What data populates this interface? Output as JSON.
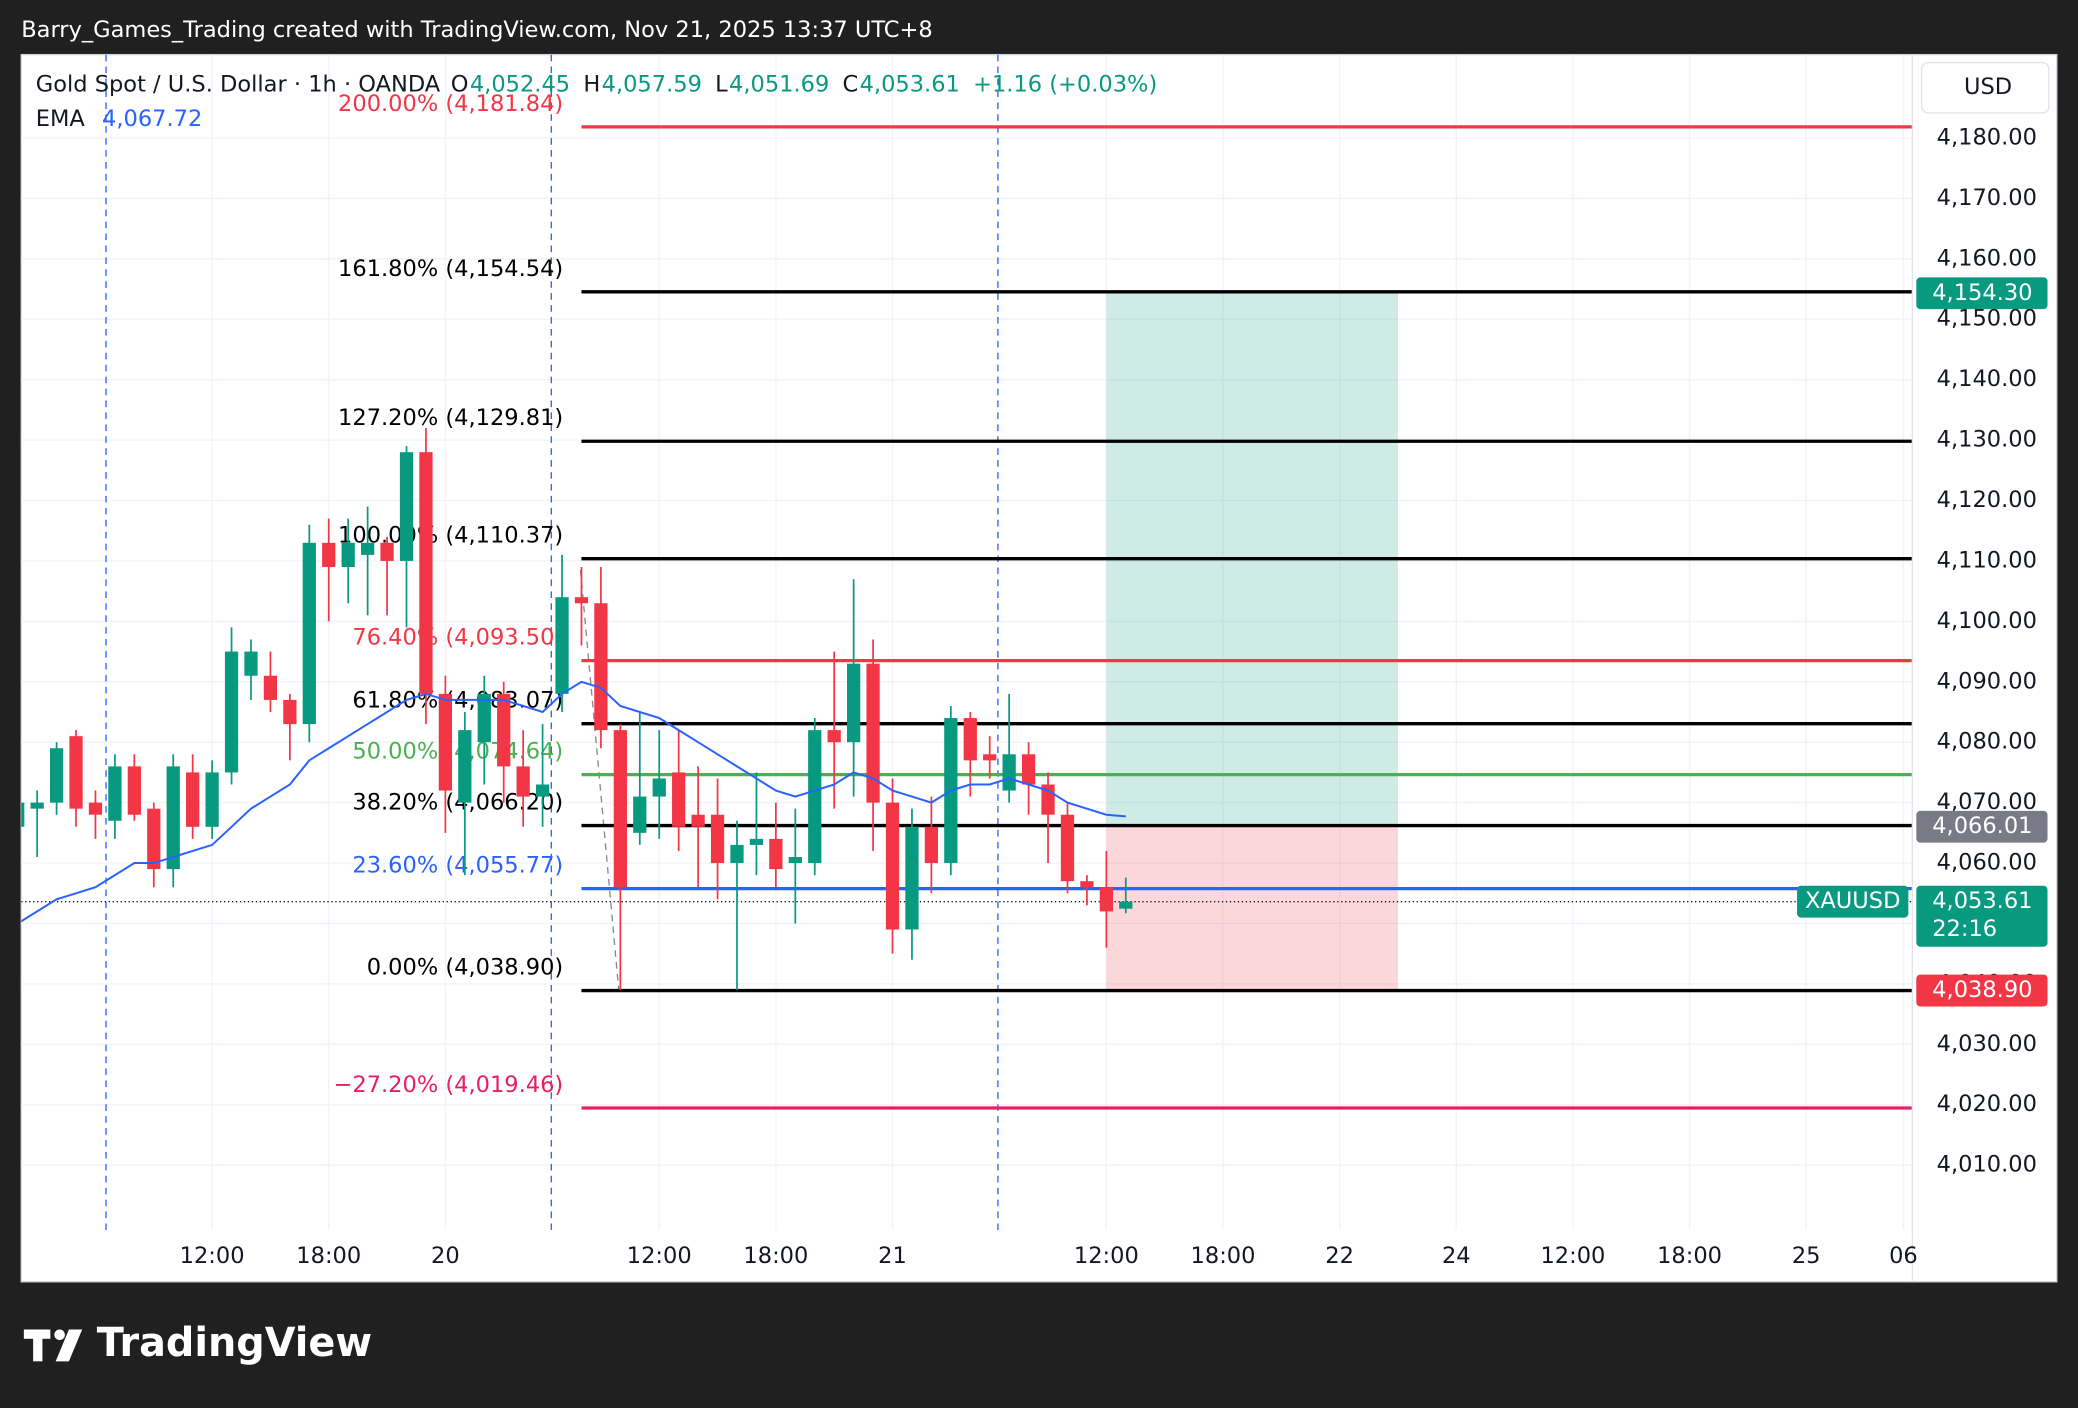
{
  "header": {
    "text": "Barry_Games_Trading created with TradingView.com, Nov 21, 2025 13:37 UTC+8"
  },
  "footer": {
    "brand": "TradingView"
  },
  "chart_data": {
    "type": "candlestick",
    "legend": {
      "symbol": "Gold Spot / U.S. Dollar · 1h · OANDA",
      "ohlc": [
        {
          "key": "O",
          "value": "4,052.45"
        },
        {
          "key": "H",
          "value": "4,057.59"
        },
        {
          "key": "L",
          "value": "4,051.69"
        },
        {
          "key": "C",
          "value": "4,053.61"
        }
      ],
      "change": "+1.16 (+0.03%)",
      "ema_label": "EMA",
      "ema_value": "4,067.72"
    },
    "currency": "USD",
    "up_color": "#089981",
    "down_color": "#f23645",
    "open": [
      4066,
      4069,
      4070,
      4081,
      4070,
      4067,
      4076,
      4069,
      4059,
      4075,
      4066,
      4075,
      4091,
      4091,
      4087,
      4083,
      4113,
      4109,
      4111,
      4113,
      4110,
      4128,
      4088,
      4070,
      4080,
      4088,
      4076,
      4071,
      4088,
      4104,
      4103,
      4082,
      4065,
      4071,
      4075,
      4068,
      4068,
      4060,
      4063,
      4064,
      4060,
      4060,
      4082,
      4080,
      4093,
      4070,
      4049,
      4066,
      4060,
      4084,
      4078,
      4072,
      4078,
      4073,
      4068,
      4057,
      4056,
      4052.45
    ],
    "high": [
      4071,
      4072,
      4080,
      4082,
      4072,
      4078,
      4078,
      4070,
      4078,
      4078,
      4077,
      4099,
      4097,
      4095,
      4088,
      4116,
      4117,
      4117,
      4119,
      4114,
      4129,
      4132,
      4091,
      4085,
      4091,
      4090,
      4082,
      4083,
      4111,
      4109,
      4109,
      4083,
      4085,
      4082,
      4082,
      4076,
      4074,
      4067,
      4075,
      4070,
      4069,
      4084,
      4095,
      4107,
      4097,
      4074,
      4069,
      4071,
      4086,
      4085,
      4081,
      4088,
      4080,
      4075,
      4070,
      4058,
      4062,
      4057.59
    ],
    "low": [
      4064,
      4061,
      4068,
      4066,
      4064,
      4064,
      4067,
      4056,
      4056,
      4064,
      4064,
      4073,
      4087,
      4085,
      4077,
      4080,
      4100,
      4103,
      4101,
      4101,
      4099,
      4083,
      4065,
      4058,
      4073,
      4070,
      4066,
      4066,
      4085,
      4096,
      4079,
      4039,
      4063,
      4064,
      4062,
      4056,
      4054,
      4039,
      4058,
      4056,
      4050,
      4058,
      4069,
      4071,
      4062,
      4045,
      4044,
      4055,
      4058,
      4071,
      4074,
      4070,
      4068,
      4060,
      4055,
      4053,
      4046,
      4051.69
    ],
    "close": [
      4070,
      4070,
      4079,
      4069,
      4068,
      4076,
      4068,
      4059,
      4076,
      4066,
      4075,
      4095,
      4095,
      4087,
      4083,
      4113,
      4109,
      4113,
      4113,
      4110,
      4128,
      4088,
      4072,
      4082,
      4088,
      4076,
      4071,
      4073,
      4104,
      4103,
      4082,
      4056,
      4071,
      4074,
      4066,
      4066,
      4060,
      4063,
      4064,
      4059,
      4061,
      4082,
      4080,
      4093,
      4070,
      4049,
      4066,
      4060,
      4084,
      4077,
      4077,
      4078,
      4073,
      4068,
      4057,
      4056,
      4052,
      4053.61
    ],
    "ema": {
      "color": "#2962ff",
      "values": [
        4050,
        4052,
        4054,
        4055,
        4056,
        4058,
        4060,
        4060,
        4061,
        4062,
        4063,
        4066,
        4069,
        4071,
        4073,
        4077,
        4079,
        4081,
        4083,
        4085,
        4087,
        4088,
        4087,
        4087,
        4087,
        4087,
        4086,
        4085,
        4088,
        4090,
        4089,
        4086,
        4085,
        4084,
        4082,
        4080,
        4078,
        4076,
        4074,
        4072,
        4071,
        4072,
        4073,
        4075,
        4074,
        4072,
        4071,
        4070,
        4072,
        4073,
        4073,
        4074,
        4073,
        4072,
        4070,
        4069,
        4068,
        4067.72
      ]
    },
    "xlim": [
      0.18,
      97.46
    ],
    "xticks": [
      {
        "value": 10,
        "label": "12:00"
      },
      {
        "value": 16,
        "label": "18:00"
      },
      {
        "value": 22,
        "label": "20"
      },
      {
        "value": 33,
        "label": "12:00"
      },
      {
        "value": 39,
        "label": "18:00"
      },
      {
        "value": 45,
        "label": "21"
      },
      {
        "value": 56,
        "label": "12:00"
      },
      {
        "value": 62,
        "label": "18:00"
      },
      {
        "value": 68,
        "label": "22"
      },
      {
        "value": 74,
        "label": "24"
      },
      {
        "value": 80,
        "label": "12:00"
      },
      {
        "value": 86,
        "label": "18:00"
      },
      {
        "value": 92,
        "label": "25"
      },
      {
        "value": 97,
        "label": "06"
      }
    ],
    "ylim": [
      3999.25,
      4193.8
    ],
    "yticks": [
      {
        "value": 4010,
        "label": "4,010.00"
      },
      {
        "value": 4020,
        "label": "4,020.00"
      },
      {
        "value": 4030,
        "label": "4,030.00"
      },
      {
        "value": 4040,
        "label": "4,040.00"
      },
      {
        "value": 4050,
        "label": "4,050.00"
      },
      {
        "value": 4060,
        "label": "4,060.00"
      },
      {
        "value": 4070,
        "label": "4,070.00"
      },
      {
        "value": 4080,
        "label": "4,080.00"
      },
      {
        "value": 4090,
        "label": "4,090.00"
      },
      {
        "value": 4100,
        "label": "4,100.00"
      },
      {
        "value": 4110,
        "label": "4,110.00"
      },
      {
        "value": 4120,
        "label": "4,120.00"
      },
      {
        "value": 4130,
        "label": "4,130.00"
      },
      {
        "value": 4140,
        "label": "4,140.00"
      },
      {
        "value": 4150,
        "label": "4,150.00"
      },
      {
        "value": 4160,
        "label": "4,160.00"
      },
      {
        "value": 4170,
        "label": "4,170.00"
      },
      {
        "value": 4180,
        "label": "4,180.00"
      }
    ],
    "grid": true,
    "fibonacci": {
      "start_x": 29,
      "levels": [
        {
          "label": "200.00% (4,181.84)",
          "value": 4181.84,
          "color": "#f23645"
        },
        {
          "label": "161.80% (4,154.54)",
          "value": 4154.54,
          "color": "#000000"
        },
        {
          "label": "127.20% (4,129.81)",
          "value": 4129.81,
          "color": "#000000"
        },
        {
          "label": "100.00% (4,110.37)",
          "value": 4110.37,
          "color": "#000000"
        },
        {
          "label": "76.40% (4,093.50)",
          "value": 4093.5,
          "color": "#f23645"
        },
        {
          "label": "61.80% (4,083.07)",
          "value": 4083.07,
          "color": "#000000"
        },
        {
          "label": "50.00% (4,074.64)",
          "value": 4074.64,
          "color": "#4caf50"
        },
        {
          "label": "38.20% (4,066.20)",
          "value": 4066.2,
          "color": "#000000"
        },
        {
          "label": "23.60% (4,055.77)",
          "value": 4055.77,
          "color": "#2962ff"
        },
        {
          "label": "0.00% (4,038.90)",
          "value": 4038.9,
          "color": "#000000"
        },
        {
          "label": "−27.20% (4,019.46)",
          "value": 4019.46,
          "color": "#e91e63"
        }
      ]
    },
    "position": {
      "x": [
        56,
        71
      ],
      "entry": 4066.01,
      "target": 4154.3,
      "stop": 4038.9
    },
    "price_tags": [
      {
        "value": 4154.3,
        "label": "4,154.30",
        "color": "#089981"
      },
      {
        "value": 4066.01,
        "label": "4,066.01",
        "color": "#787b86"
      },
      {
        "value": 4038.9,
        "label": "4,038.90",
        "color": "#f23645"
      }
    ],
    "last_price": {
      "value": 4053.61,
      "label": "4,053.61",
      "countdown": "22:16",
      "symbol": "XAUUSD",
      "color": "#089981"
    }
  }
}
